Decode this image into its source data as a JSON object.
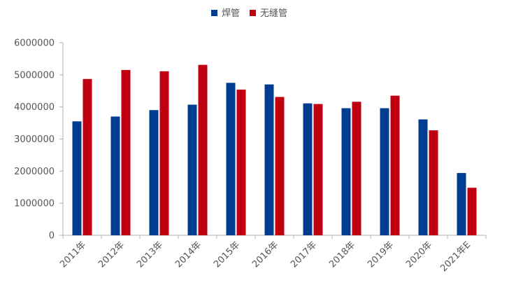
{
  "chart_data": {
    "type": "bar",
    "categories": [
      "2011年",
      "2012年",
      "2013年",
      "2014年",
      "2015年",
      "2016年",
      "2017年",
      "2018年",
      "2019年",
      "2020年",
      "2021年E"
    ],
    "series": [
      {
        "name": "焊管",
        "color": "#003C8F",
        "values": [
          3550000,
          3700000,
          3900000,
          4070000,
          4750000,
          4700000,
          4110000,
          3960000,
          3960000,
          3610000,
          1940000
        ]
      },
      {
        "name": "无缝管",
        "color": "#C00010",
        "values": [
          4870000,
          5150000,
          5110000,
          5310000,
          4540000,
          4310000,
          4090000,
          4160000,
          4350000,
          3270000,
          1480000
        ]
      }
    ],
    "ylim": [
      0,
      6000000
    ],
    "yticks": [
      0,
      1000000,
      2000000,
      3000000,
      4000000,
      5000000,
      6000000
    ],
    "ytick_labels": [
      "0",
      "1000000",
      "2000000",
      "3000000",
      "4000000",
      "5000000",
      "6000000"
    ],
    "legend": {
      "position": "top-center"
    },
    "grid": false
  }
}
